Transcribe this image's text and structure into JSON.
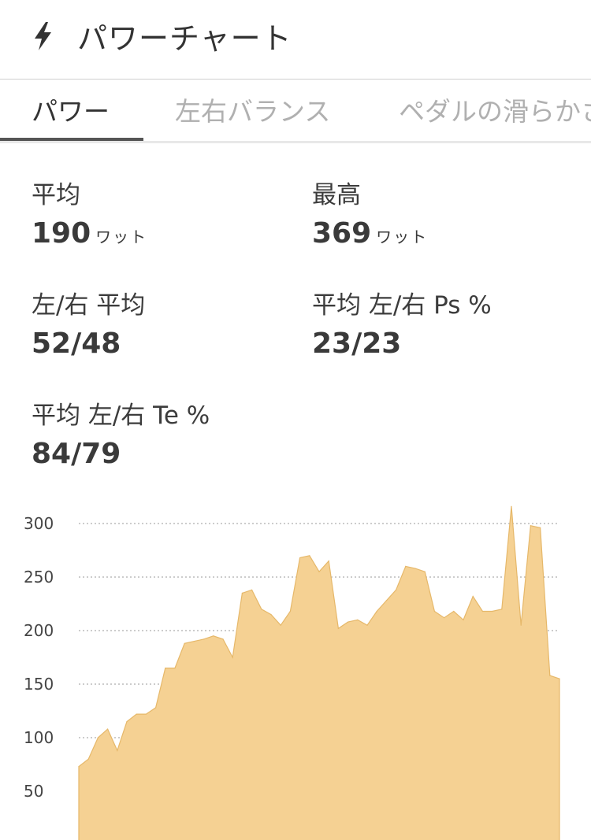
{
  "header": {
    "title": "パワーチャート",
    "icon": "bolt-icon"
  },
  "tabs": [
    {
      "label": "パワー",
      "active": true
    },
    {
      "label": "左右バランス",
      "active": false
    },
    {
      "label": "ペダルの滑らかさ",
      "active": false
    }
  ],
  "stats": {
    "avg": {
      "label": "平均",
      "value": "190",
      "unit": "ワット"
    },
    "max": {
      "label": "最高",
      "value": "369",
      "unit": "ワット"
    },
    "lr_avg": {
      "label": "左/右 平均",
      "value": "52/48"
    },
    "ps": {
      "label": "平均 左/右 Ps %",
      "value": "23/23"
    },
    "te": {
      "label": "平均 左/右 Te %",
      "value": "84/79"
    }
  },
  "chart_data": {
    "type": "area",
    "color": "#f5d193",
    "stroke": "#e6b86a",
    "ylim": [
      0,
      320
    ],
    "yticks": [
      50,
      100,
      150,
      200,
      250,
      300
    ],
    "x": [
      0,
      2,
      4,
      6,
      8,
      10,
      12,
      14,
      16,
      18,
      20,
      22,
      24,
      26,
      28,
      30,
      32,
      34,
      36,
      38,
      40,
      42,
      44,
      46,
      48,
      50,
      52,
      54,
      56,
      58,
      60,
      62,
      64,
      66,
      68,
      70,
      72,
      74,
      76,
      78,
      80,
      82,
      84,
      86,
      88,
      90,
      92,
      94,
      96,
      98,
      100
    ],
    "values": [
      73,
      80,
      100,
      108,
      88,
      115,
      122,
      122,
      128,
      165,
      165,
      188,
      190,
      192,
      195,
      192,
      175,
      235,
      238,
      220,
      215,
      205,
      218,
      268,
      270,
      255,
      265,
      202,
      208,
      210,
      205,
      218,
      228,
      238,
      260,
      258,
      255,
      218,
      212,
      218,
      210,
      232,
      218,
      218,
      220,
      316,
      205,
      298,
      296,
      158,
      155
    ]
  }
}
